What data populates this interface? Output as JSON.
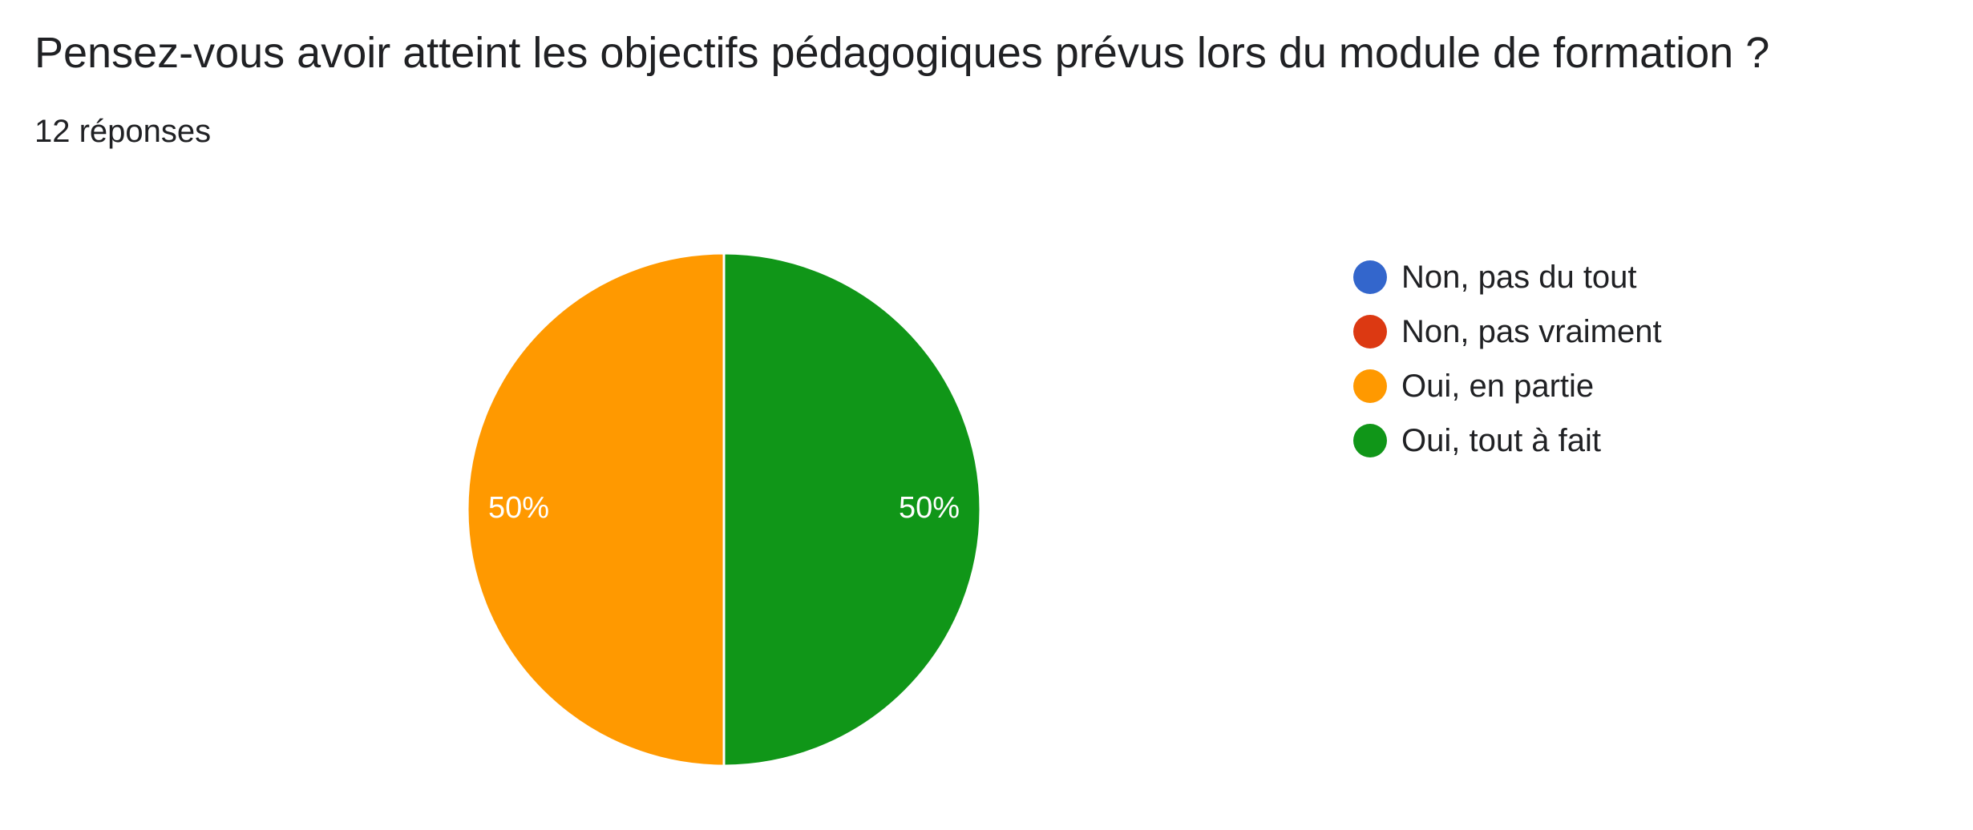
{
  "header": {
    "question": "Pensez-vous avoir atteint les objectifs pédagogiques prévus lors du module de formation ?",
    "responses": "12 réponses"
  },
  "chart_data": {
    "type": "pie",
    "title": "Pensez-vous avoir atteint les objectifs pédagogiques prévus lors du module de formation ?",
    "categories": [
      "Non, pas du tout",
      "Non, pas vraiment",
      "Oui, en partie",
      "Oui, tout à fait"
    ],
    "values": [
      0,
      0,
      50,
      50
    ],
    "labels": [
      "",
      "",
      "50%",
      "50%"
    ],
    "colors": [
      "#3366cc",
      "#dc3912",
      "#ff9900",
      "#109618"
    ],
    "legend_position": "right"
  }
}
